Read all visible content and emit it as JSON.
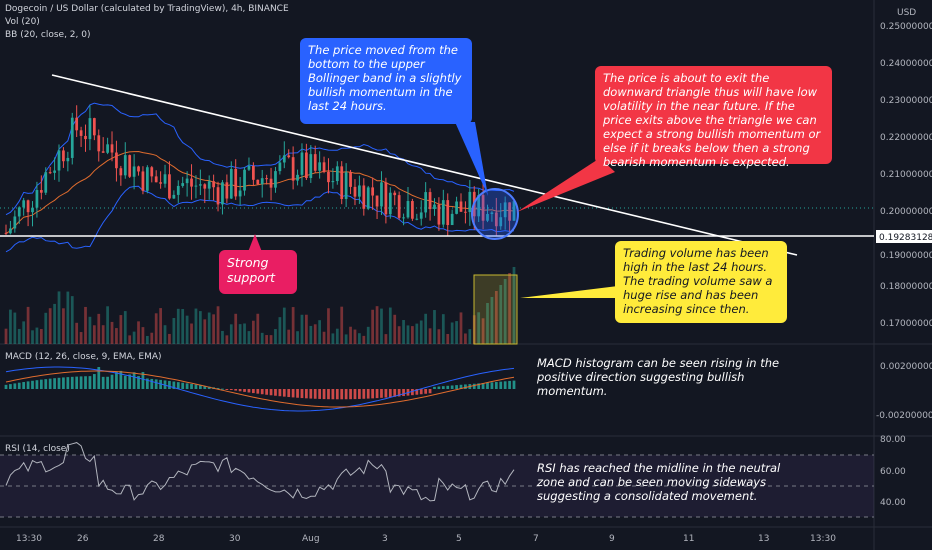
{
  "header": {
    "title": "Dogecoin / US Dollar (calculated by TradingView), 4h, BINANCE",
    "vol": "Vol (20)",
    "bb": "BB (20, close, 2, 0)",
    "currency": "USD"
  },
  "price_axis": {
    "ticks": [
      "0.25000000",
      "0.24000000",
      "0.23000000",
      "0.22000000",
      "0.21000000",
      "0.20000000",
      "0.19000000",
      "0.18000000",
      "0.17000000"
    ],
    "current_price": "0.19283128"
  },
  "macd": {
    "label": "MACD (12, 26, close, 9, EMA, EMA)",
    "ticks": [
      "0.00200000",
      "-0.00200000"
    ]
  },
  "rsi": {
    "label": "RSI (14, close)",
    "ticks": [
      "80.00",
      "60.00",
      "40.00"
    ]
  },
  "time_axis": [
    "13:30",
    "26",
    "28",
    "30",
    "Aug",
    "3",
    "5",
    "7",
    "9",
    "11",
    "13",
    "13:30"
  ],
  "annotations": {
    "bollinger": "The price moved from the bottom to the upper Bollinger band in a slightly bullish momentum in the last 24 hours.",
    "triangle": "The price is about to exit the downward triangle thus will have low volatility in the near future. If the price exits above the triangle we can expect a strong bullish momentum or else if it breaks below then a strong bearish momentum is expected.",
    "support": "Strong support",
    "volume": "Trading volume has been high in the last 24 hours. The trading volume saw a huge rise and has been increasing since then.",
    "macd": "MACD histogram can be seen rising in the positive direction suggesting bullish momentum.",
    "rsi": "RSI has reached the midline in the neutral zone and can be seen moving sideways suggesting a consolidated movement."
  },
  "colors": {
    "background": "#131722",
    "bull": "#26a69a",
    "bear": "#ef5350",
    "bollinger": "#2962ff",
    "basis": "#e06c2e",
    "annotation_blue": "#2962ff",
    "annotation_red": "#f23645",
    "annotation_pink": "#e91e63",
    "annotation_yellow": "#ffeb3b"
  },
  "chart_data": {
    "type": "line",
    "title": "Dogecoin / US Dollar (calculated by TradingView), 4h, BINANCE",
    "x": [
      "13:30",
      "26",
      "28",
      "30",
      "Aug",
      "3",
      "5",
      "7"
    ],
    "series": [
      {
        "values": [
          0.194,
          0.223,
          0.208,
          0.206,
          0.212,
          0.205,
          0.2,
          0.201
        ]
      }
    ],
    "ylim": [
      0.165,
      0.252
    ],
    "current_price": 0.19283128,
    "support_level": 0.19283128,
    "rsi_levels": [
      70,
      50,
      30
    ]
  }
}
